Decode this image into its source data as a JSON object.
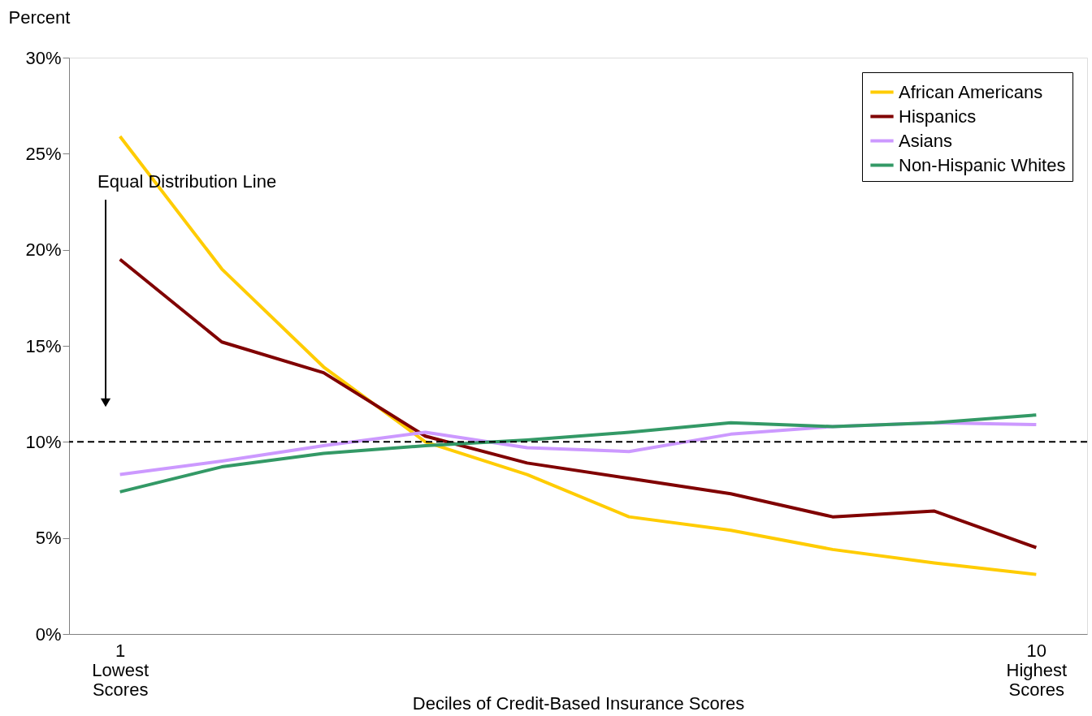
{
  "chart_data": {
    "type": "line",
    "xlabel": "Deciles of Credit-Based Insurance Scores",
    "ylabel": "Percent",
    "categories": [
      "1\nLowest\nScores",
      null,
      null,
      null,
      null,
      null,
      null,
      null,
      null,
      "10\nHighest\nScores"
    ],
    "series": [
      {
        "name": "African Americans",
        "color": "#ffcc00",
        "values": [
          25.9,
          19.0,
          13.9,
          10.0,
          8.3,
          6.1,
          5.4,
          4.4,
          3.7,
          3.1
        ]
      },
      {
        "name": "Hispanics",
        "color": "#800000",
        "values": [
          19.5,
          15.2,
          13.6,
          10.3,
          8.9,
          8.1,
          7.3,
          6.1,
          6.4,
          4.5
        ]
      },
      {
        "name": "Asians",
        "color": "#cc99ff",
        "values": [
          8.3,
          9.0,
          9.8,
          10.5,
          9.7,
          9.5,
          10.4,
          10.8,
          11.0,
          10.9
        ]
      },
      {
        "name": "Non-Hispanic Whites",
        "color": "#339966",
        "values": [
          7.4,
          8.7,
          9.4,
          9.8,
          10.1,
          10.5,
          11.0,
          10.8,
          11.0,
          11.4
        ]
      }
    ],
    "ylim": [
      0,
      30
    ],
    "yticks": [
      {
        "value": 0,
        "label": "0%"
      },
      {
        "value": 5,
        "label": "5%"
      },
      {
        "value": 10,
        "label": "10%"
      },
      {
        "value": 15,
        "label": "15%"
      },
      {
        "value": 20,
        "label": "20%"
      },
      {
        "value": 25,
        "label": "25%"
      },
      {
        "value": 30,
        "label": "30%"
      }
    ],
    "ref_lines": [
      {
        "axis": "y",
        "value": 10,
        "color": "#000000",
        "line_style": "dashed"
      }
    ],
    "annotations": [
      "Equal Distribution Line"
    ],
    "legend": "top right",
    "grid": false,
    "marker": "none",
    "line_style": "solid"
  }
}
